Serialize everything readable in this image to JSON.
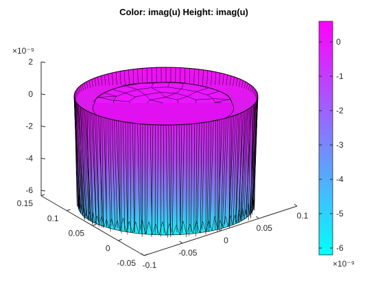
{
  "chart_data": {
    "type": "surface",
    "title": "Color: imag(u)  Height: imag(u)",
    "z_axis": {
      "multiplier": "×10⁻⁹",
      "ticks": [
        {
          "value": 2,
          "label": "2"
        },
        {
          "value": 0,
          "label": "0"
        },
        {
          "value": -2,
          "label": "-2"
        },
        {
          "value": -4,
          "label": "-4"
        },
        {
          "value": -6,
          "label": "-6"
        }
      ]
    },
    "y_axis": {
      "ticks": [
        {
          "value": 0.15,
          "label": "0.15"
        },
        {
          "value": 0.1,
          "label": "0.1"
        },
        {
          "value": 0.05,
          "label": "0.05"
        },
        {
          "value": 0,
          "label": "0"
        },
        {
          "value": -0.05,
          "label": "-0.05"
        }
      ]
    },
    "x_axis": {
      "ticks": [
        {
          "value": 0.1,
          "label": "0.1"
        },
        {
          "value": 0.05,
          "label": "0.05"
        },
        {
          "value": 0,
          "label": "0"
        },
        {
          "value": -0.05,
          "label": "-0.05"
        },
        {
          "value": -0.1,
          "label": "-0.1"
        }
      ]
    },
    "colorbar": {
      "multiplier": "×10⁻⁹",
      "range": [
        -6.2,
        0.6
      ],
      "colormap": [
        "#00ffff",
        "#ff00ff"
      ],
      "ticks": [
        {
          "value": 0,
          "label": "0"
        },
        {
          "value": -1,
          "label": "-1"
        },
        {
          "value": -2,
          "label": "-2"
        },
        {
          "value": -3,
          "label": "-3"
        },
        {
          "value": -4,
          "label": "-4"
        },
        {
          "value": -5,
          "label": "-5"
        },
        {
          "value": -6,
          "label": "-6"
        }
      ]
    },
    "surface": {
      "shape": "cylinder",
      "rim_value": 0.5,
      "top_value": 0,
      "base_value": -6,
      "edge_color": "#000000"
    }
  }
}
